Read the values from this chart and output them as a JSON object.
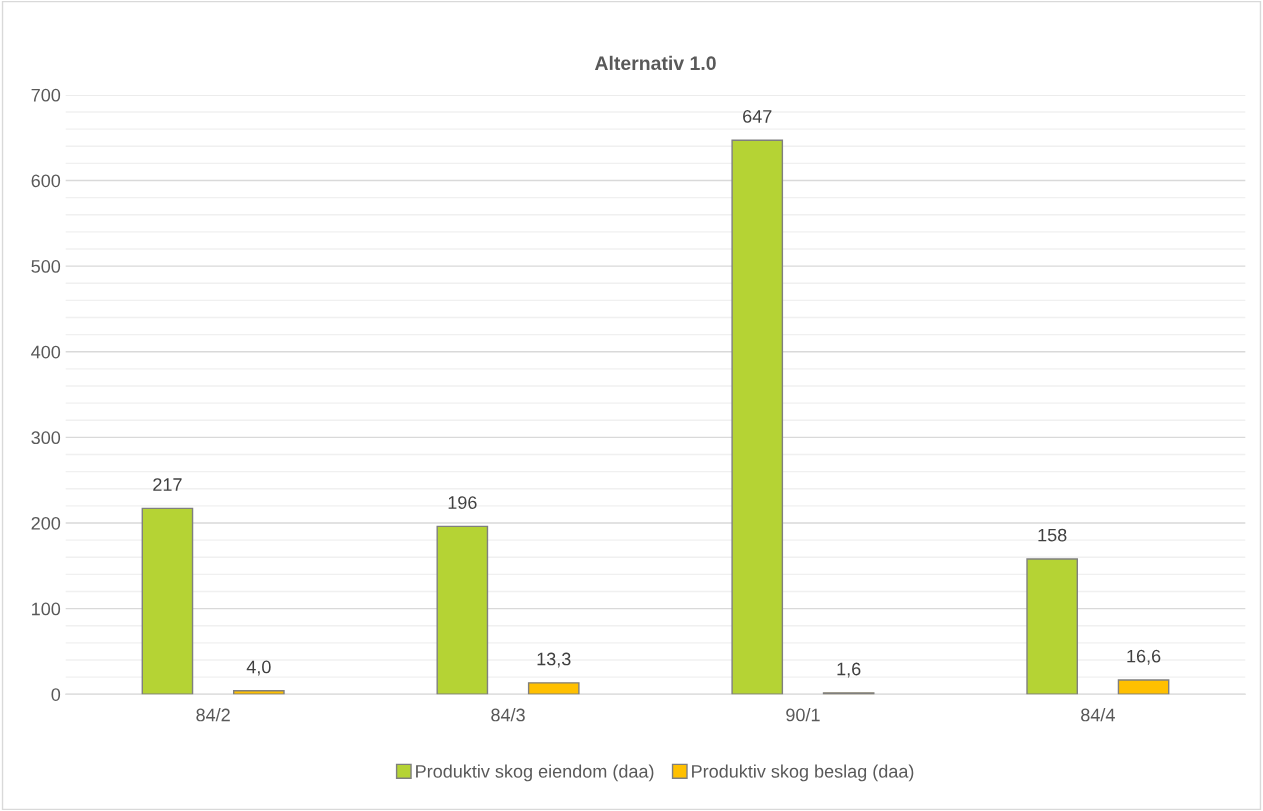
{
  "chart_data": {
    "type": "bar",
    "title": "Alternativ 1.0",
    "categories": [
      "84/2",
      "84/3",
      "90/1",
      "84/4"
    ],
    "series": [
      {
        "name": "Produktiv skog eiendom (daa)",
        "color": "#b5d334",
        "values": [
          217,
          196,
          647,
          158
        ],
        "value_labels": [
          "217",
          "196",
          "647",
          "158"
        ]
      },
      {
        "name": "Produktiv skog beslag (daa)",
        "color": "#ffc000",
        "values": [
          4.0,
          13.3,
          1.6,
          16.6
        ],
        "value_labels": [
          "4,0",
          "13,3",
          "1,6",
          "16,6"
        ]
      }
    ],
    "ylim": [
      0,
      700
    ],
    "yticks": [
      0,
      {
        "value": 20,
        "label": null
      },
      {
        "value": 40,
        "label": null
      },
      {
        "value": 60,
        "label": null
      },
      {
        "value": 80,
        "label": null
      },
      100,
      {
        "value": 120,
        "label": null
      },
      {
        "value": 140,
        "label": null
      },
      {
        "value": 160,
        "label": null
      },
      {
        "value": 180,
        "label": null
      },
      200,
      {
        "value": 220,
        "label": null
      },
      {
        "value": 240,
        "label": null
      },
      {
        "value": 260,
        "label": null
      },
      {
        "value": 280,
        "label": null
      },
      300,
      {
        "value": 320,
        "label": null
      },
      {
        "value": 340,
        "label": null
      },
      {
        "value": 360,
        "label": null
      },
      {
        "value": 380,
        "label": null
      },
      400,
      {
        "value": 420,
        "label": null
      },
      {
        "value": 440,
        "label": null
      },
      {
        "value": 460,
        "label": null
      },
      {
        "value": 480,
        "label": null
      },
      500,
      {
        "value": 520,
        "label": null
      },
      {
        "value": 540,
        "label": null
      },
      {
        "value": 560,
        "label": null
      },
      {
        "value": 580,
        "label": null
      },
      600,
      {
        "value": 620,
        "label": null
      },
      {
        "value": 640,
        "label": null
      },
      {
        "value": 660,
        "label": null
      },
      {
        "value": 680,
        "label": null
      },
      700
    ],
    "grid": "y",
    "legend": "bottom"
  }
}
